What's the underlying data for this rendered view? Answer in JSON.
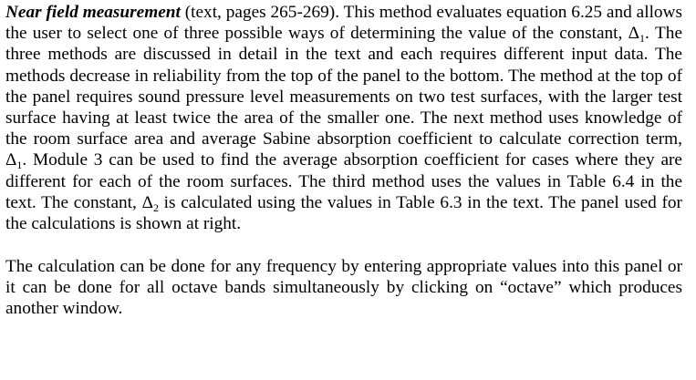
{
  "paragraph1": {
    "term": "Near field measurement",
    "s1": " (text, pages 265-269).  This method evaluates equation 6.25 and allows the user to select one of three possible ways of determining the value of the constant, ",
    "delta1a": "Δ",
    "sub1a": "1",
    "s2": ".  The three methods are discussed in detail in the text and each requires different input data.  The methods decrease in reliability from the top of the panel to the bottom.  The method at the top of the panel requires sound pressure level measurements on two test surfaces, with the larger test surface having at least twice the area of the smaller one.  The next method uses knowledge of the room surface area and average Sabine absorption coefficient to calculate correction term, ",
    "delta1b": "Δ",
    "sub1b": "1",
    "s3": ". Module 3 can be used to find the average absorption coefficient for cases where they are different for each of the room surfaces.  The third method uses the values in Table 6.4 in the text. The constant, ",
    "delta2": "Δ",
    "sub2": "2",
    "s4": " is calculated using the values in Table 6.3 in the text. The panel used for the calculations is shown at right."
  },
  "paragraph2": {
    "text": "The calculation can be done for any frequency by entering appropriate values into this panel or it can be done for all octave bands simultaneously by clicking on “octave” which produces another window."
  }
}
